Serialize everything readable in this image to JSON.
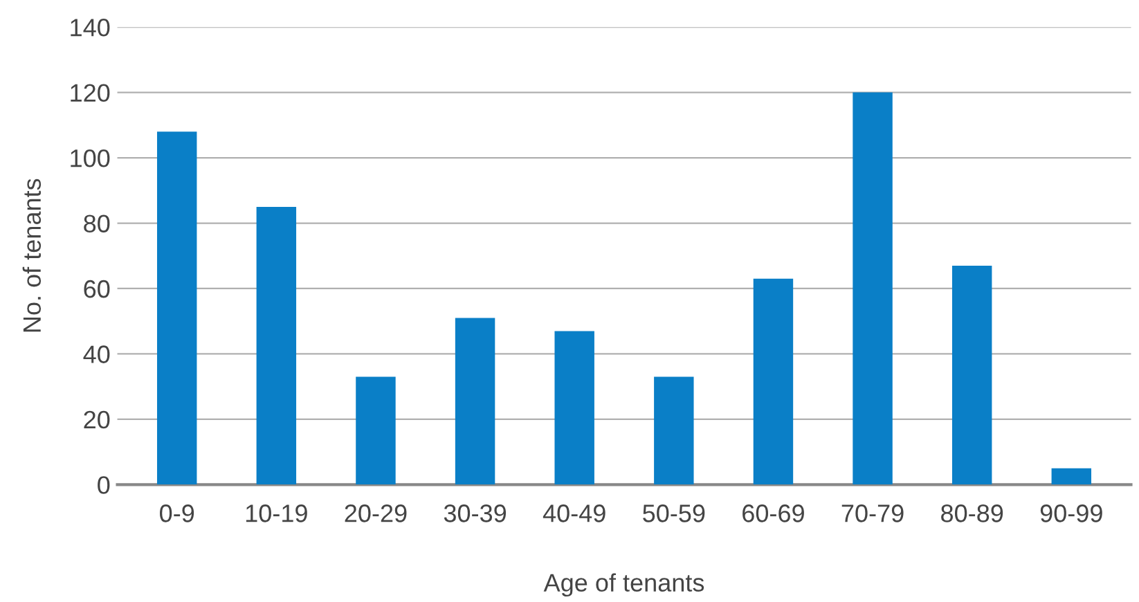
{
  "chart_data": {
    "type": "bar",
    "xlabel": "Age of tenants",
    "ylabel": "No. of tenants",
    "categories": [
      "0-9",
      "10-19",
      "20-29",
      "30-39",
      "40-49",
      "50-59",
      "60-69",
      "70-79",
      "80-89",
      "90-99"
    ],
    "values": [
      108,
      85,
      33,
      51,
      47,
      33,
      63,
      120,
      67,
      5
    ],
    "color": "#0a7fc7",
    "ylim": [
      0,
      140
    ],
    "yticks": [
      0,
      20,
      40,
      60,
      80,
      100,
      120,
      140
    ],
    "grid": "y"
  }
}
